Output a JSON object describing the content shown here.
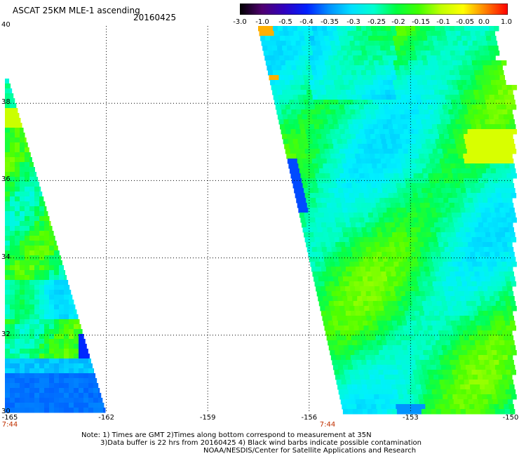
{
  "header": {
    "title": "ASCAT 25KM MLE-1 ascending",
    "date": "20160425"
  },
  "colorbar": {
    "tick_labels": [
      "-3.0",
      "-1.0",
      "-0.5",
      "-0.4",
      "-0.35",
      "-0.3",
      "-0.25",
      "-0.2",
      "-0.15",
      "-0.1",
      "-0.05",
      "0.0",
      "1.0"
    ],
    "colors": [
      "#000000",
      "#500070",
      "#3000c0",
      "#0020ff",
      "#0090ff",
      "#00e0ff",
      "#00ffd0",
      "#00ff40",
      "#40ff00",
      "#c0ff00",
      "#ffff00",
      "#ff8000",
      "#ff0000"
    ]
  },
  "map": {
    "lat_labels": [
      "40",
      "38",
      "36",
      "34",
      "32",
      "30"
    ],
    "lon_labels": [
      "-165",
      "-162",
      "-159",
      "-156",
      "-153",
      "-150"
    ],
    "pass_times": [
      "7:44",
      "7:44"
    ]
  },
  "chart_data": {
    "type": "heatmap",
    "title": "ASCAT 25KM MLE-1 ascending",
    "subtitle": "20160425",
    "x_range": [
      -165,
      -150
    ],
    "y_range": [
      30,
      40
    ],
    "color_scale_ticks": [
      -3.0,
      -1.0,
      -0.5,
      -0.4,
      -0.35,
      -0.3,
      -0.25,
      -0.2,
      -0.15,
      -0.1,
      -0.05,
      0.0,
      1.0
    ],
    "grid": true,
    "swaths": [
      {
        "name": "",
        "lon_west_edge_range": [
          -165,
          -162
        ],
        "lat_range": [
          30,
          38.8
        ],
        "dominant_values": [
          -0.2,
          -0.25,
          -0.35
        ]
      },
      {
        "name": "",
        "lon_range": [
          -157,
          -150
        ],
        "lat_range": [
          30,
          40
        ],
        "dominant_values": [
          -0.2,
          -0.25,
          -0.15
        ]
      }
    ]
  },
  "notes": {
    "line1": "Note: 1) Times are GMT 2)Times along bottom correspond to measurement at 35N",
    "line2": "3)Data buffer is 22 hrs from 20160425 4) Black wind barbs indicate possible contamination",
    "line3": "NOAA/NESDIS/Center for Satellite Applications and Research"
  }
}
